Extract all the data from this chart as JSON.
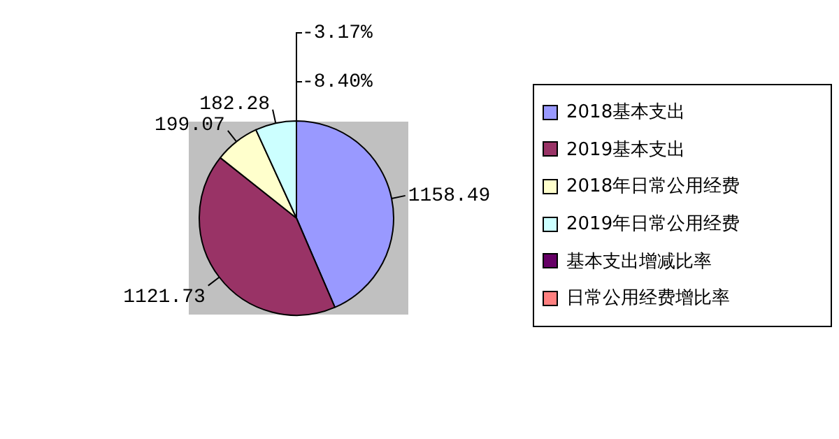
{
  "chart_data": {
    "type": "pie",
    "categories": [
      "2018基本支出",
      "2019基本支出",
      "2018年日常公用经费",
      "2019年日常公用经费",
      "基本支出增减比率",
      "日常公用经费增比率"
    ],
    "values": [
      1158.49,
      1121.73,
      199.07,
      182.28,
      null,
      null
    ],
    "colors": [
      "#9999ff",
      "#993366",
      "#ffffcc",
      "#ccffff",
      "#660066",
      "#ff8080"
    ],
    "value_labels": [
      "1158.49",
      "1121.73",
      "199.07",
      "182.28",
      null,
      null
    ],
    "annotations": [
      "-3.17%",
      "-8.40%"
    ],
    "legend": "right"
  }
}
